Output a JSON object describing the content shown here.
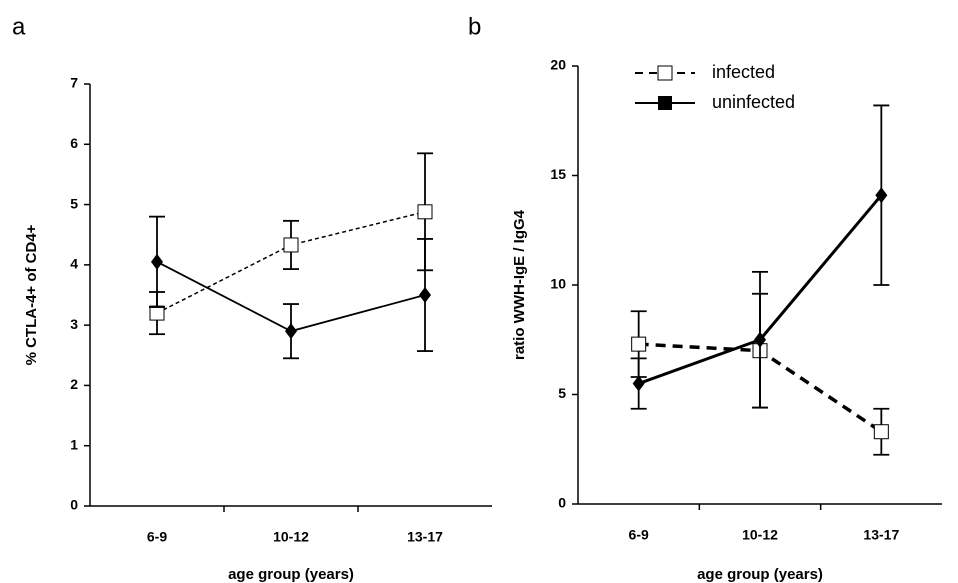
{
  "chart_data": [
    {
      "type": "line",
      "label": "a",
      "y_label": "% CTLA-4+ of CD4+",
      "x_label": "age group (years)",
      "categories": [
        "6-9",
        "10-12",
        "13-17"
      ],
      "series": [
        {
          "name": "infected",
          "color": "#000000",
          "marker": "square",
          "dash": true,
          "values": [
            3.2,
            4.33,
            4.88
          ],
          "errors": [
            0.35,
            0.4,
            0.97
          ]
        },
        {
          "name": "uninfected",
          "color": "#000000",
          "marker": "diamond",
          "dash": false,
          "values": [
            4.05,
            2.9,
            3.5
          ],
          "errors": [
            0.75,
            0.45,
            0.93
          ]
        }
      ],
      "ylim": [
        0,
        7
      ],
      "yticks": [
        0,
        1,
        2,
        3,
        4,
        5,
        6,
        7
      ],
      "legend": false
    },
    {
      "type": "line",
      "label": "b",
      "y_label": "ratio WWH-IgE / IgG4",
      "x_label": "age group (years)",
      "categories": [
        "6-9",
        "10-12",
        "13-17"
      ],
      "series": [
        {
          "name": "infected",
          "color": "#000000",
          "marker": "square",
          "dash": true,
          "values": [
            7.3,
            7.0,
            3.3
          ],
          "errors": [
            1.5,
            2.6,
            1.05
          ]
        },
        {
          "name": "uninfected",
          "color": "#000000",
          "marker": "diamond",
          "dash": false,
          "values": [
            5.5,
            7.5,
            14.1
          ],
          "errors": [
            1.15,
            3.1,
            4.1
          ]
        }
      ],
      "ylim": [
        0,
        20
      ],
      "yticks": [
        0,
        5,
        10,
        15,
        20
      ],
      "legend": "upper left"
    }
  ]
}
